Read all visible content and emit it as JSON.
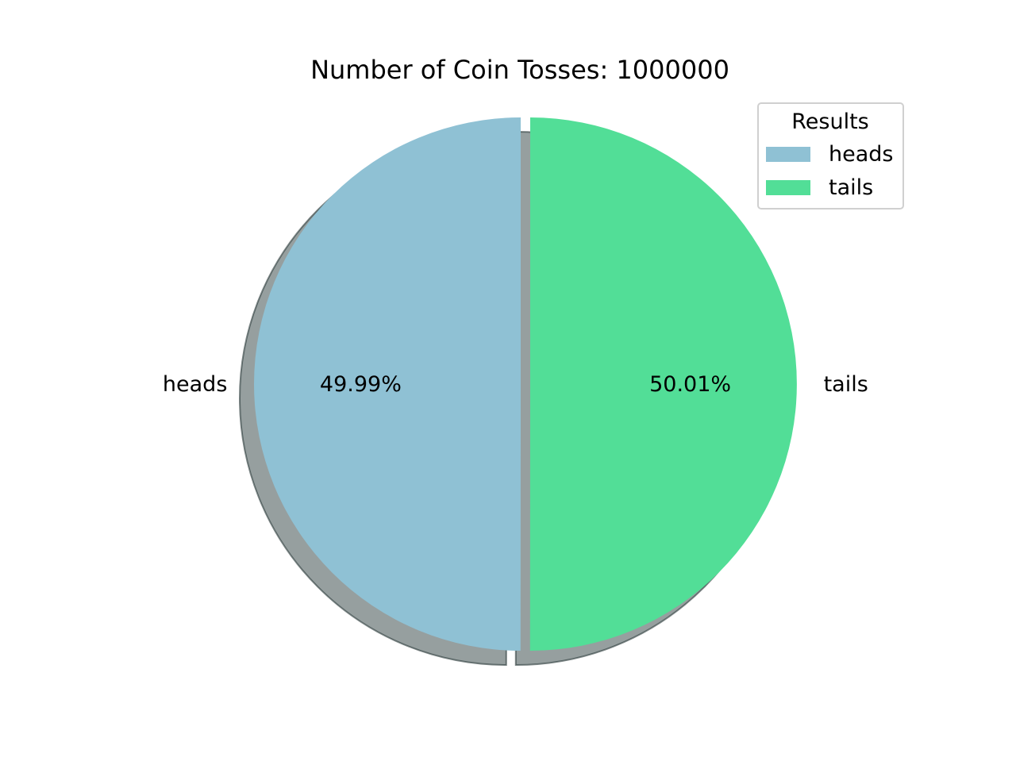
{
  "chart_data": {
    "type": "pie",
    "title": "Number of Coin Tosses: 1000000",
    "slices": [
      {
        "label": "heads",
        "value": 49.99,
        "pct_text": "49.99%",
        "color": "#8fc1d4",
        "exploded": false
      },
      {
        "label": "tails",
        "value": 50.01,
        "pct_text": "50.01%",
        "color": "#52de97",
        "exploded": true
      }
    ],
    "start_angle_deg": 90,
    "direction": "counterclockwise",
    "shadow": true,
    "legend": {
      "title": "Results",
      "placement": "top-right",
      "entries": [
        "heads",
        "tails"
      ]
    }
  }
}
